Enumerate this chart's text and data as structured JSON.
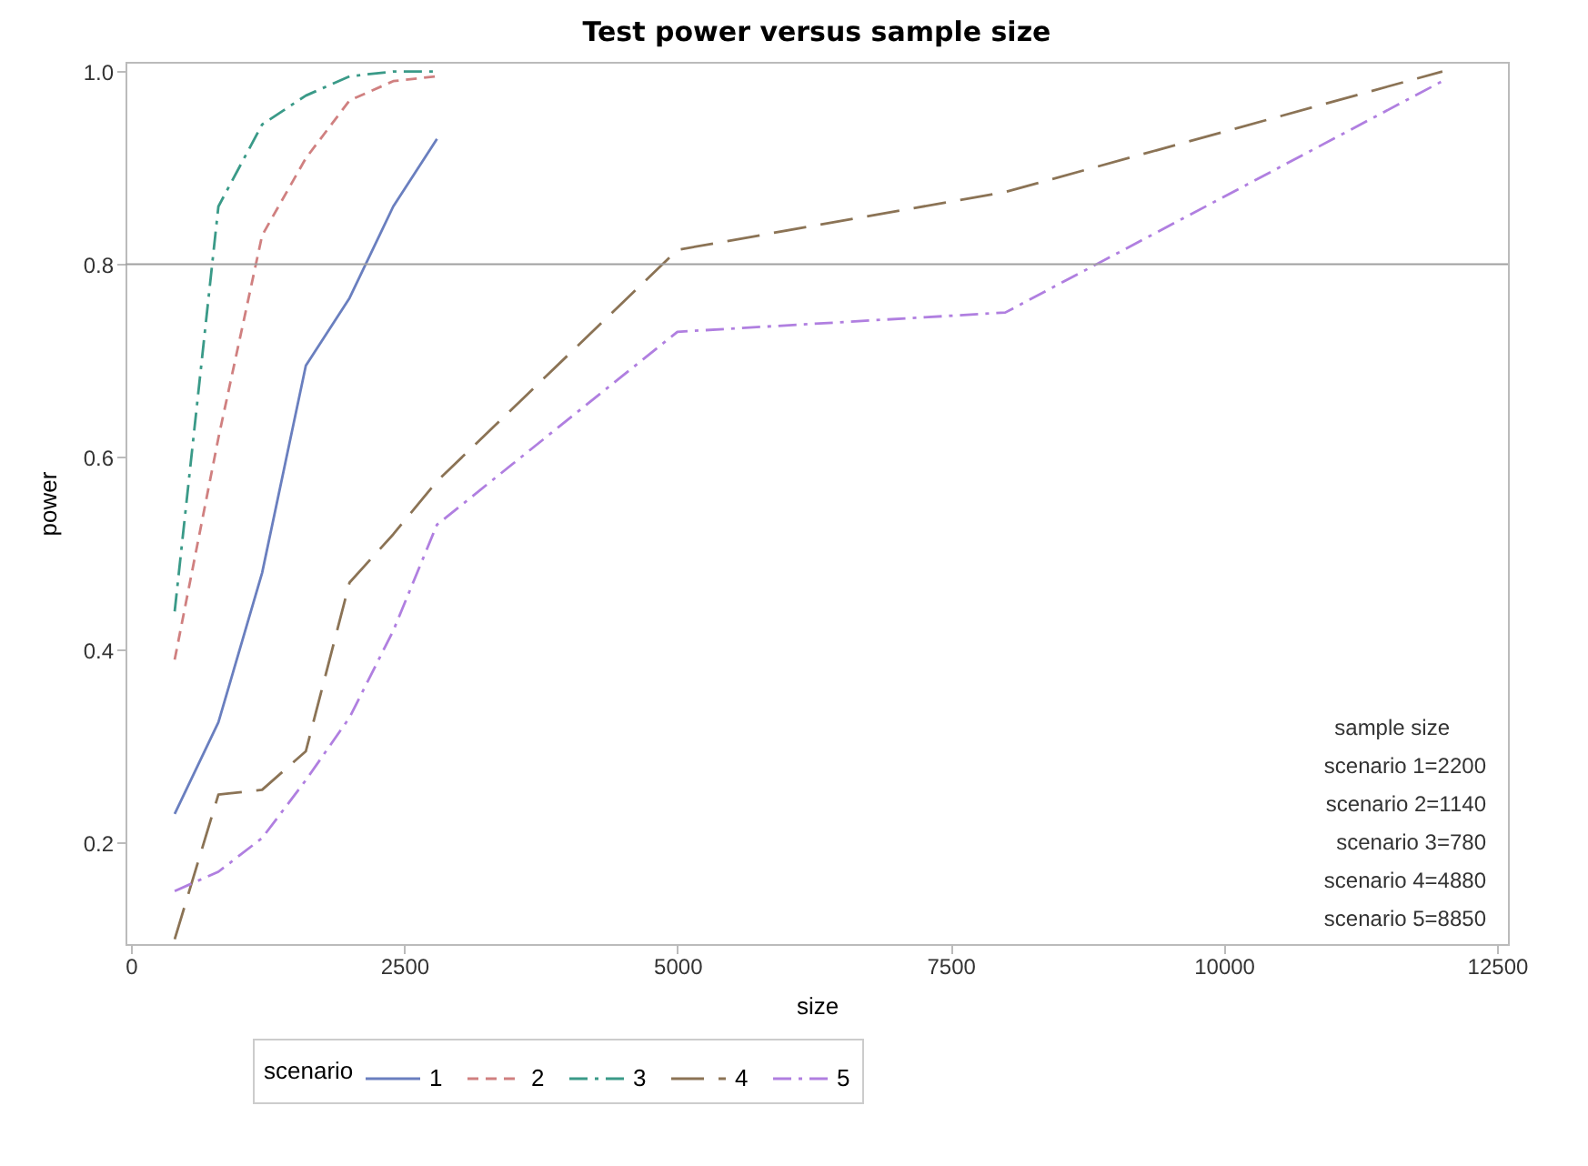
{
  "chart_data": {
    "type": "line",
    "title": "Test power versus sample size",
    "xlabel": "size",
    "ylabel": "power",
    "legend_title": "scenario",
    "xlim": [
      -50,
      12600
    ],
    "ylim": [
      0.095,
      1.01
    ],
    "xticks": [
      0,
      2500,
      5000,
      7500,
      10000,
      12500
    ],
    "yticks": [
      0.2,
      0.4,
      0.6,
      0.8,
      {
        "value": 1,
        "label": "1.0"
      }
    ],
    "grid": false,
    "legend": "bottom",
    "ref_lines": [
      {
        "axis": "y",
        "value": 0.8,
        "color": "#a0a0a0"
      }
    ],
    "annotations": [
      "sample size",
      "scenario 1=2200",
      "scenario 2=1140",
      "scenario 3=780",
      "scenario 4=4880",
      "scenario 5=8850"
    ],
    "series": [
      {
        "name": "1",
        "color": "#6a7fbf",
        "line_style": "solid",
        "x": [
          400,
          800,
          1200,
          1600,
          2000,
          2400,
          2800
        ],
        "values": [
          0.23,
          0.325,
          0.48,
          0.695,
          0.765,
          0.86,
          0.93
        ]
      },
      {
        "name": "2",
        "color": "#d08080",
        "line_style": "dashed",
        "x": [
          400,
          800,
          1200,
          1600,
          2000,
          2400,
          2800
        ],
        "values": [
          0.39,
          0.62,
          0.83,
          0.91,
          0.97,
          0.99,
          0.995
        ]
      },
      {
        "name": "3",
        "color": "#3a9a88",
        "line_style": "dashdot",
        "x": [
          400,
          800,
          1200,
          1600,
          2000,
          2400,
          2800
        ],
        "values": [
          0.44,
          0.86,
          0.945,
          0.975,
          0.995,
          1.0,
          1.0
        ]
      },
      {
        "name": "4",
        "color": "#8b7355",
        "line_style": "longdash",
        "x": [
          400,
          800,
          1200,
          1600,
          2000,
          2400,
          2800,
          5000,
          8000,
          12000
        ],
        "values": [
          0.1,
          0.25,
          0.255,
          0.295,
          0.47,
          0.52,
          0.575,
          0.815,
          0.875,
          1.0
        ]
      },
      {
        "name": "5",
        "color": "#b07fe0",
        "line_style": "dashdot",
        "x": [
          400,
          800,
          1200,
          1600,
          2000,
          2400,
          2800,
          5000,
          8000,
          12000
        ],
        "values": [
          0.15,
          0.17,
          0.205,
          0.265,
          0.33,
          0.42,
          0.53,
          0.73,
          0.75,
          0.99
        ]
      }
    ]
  }
}
